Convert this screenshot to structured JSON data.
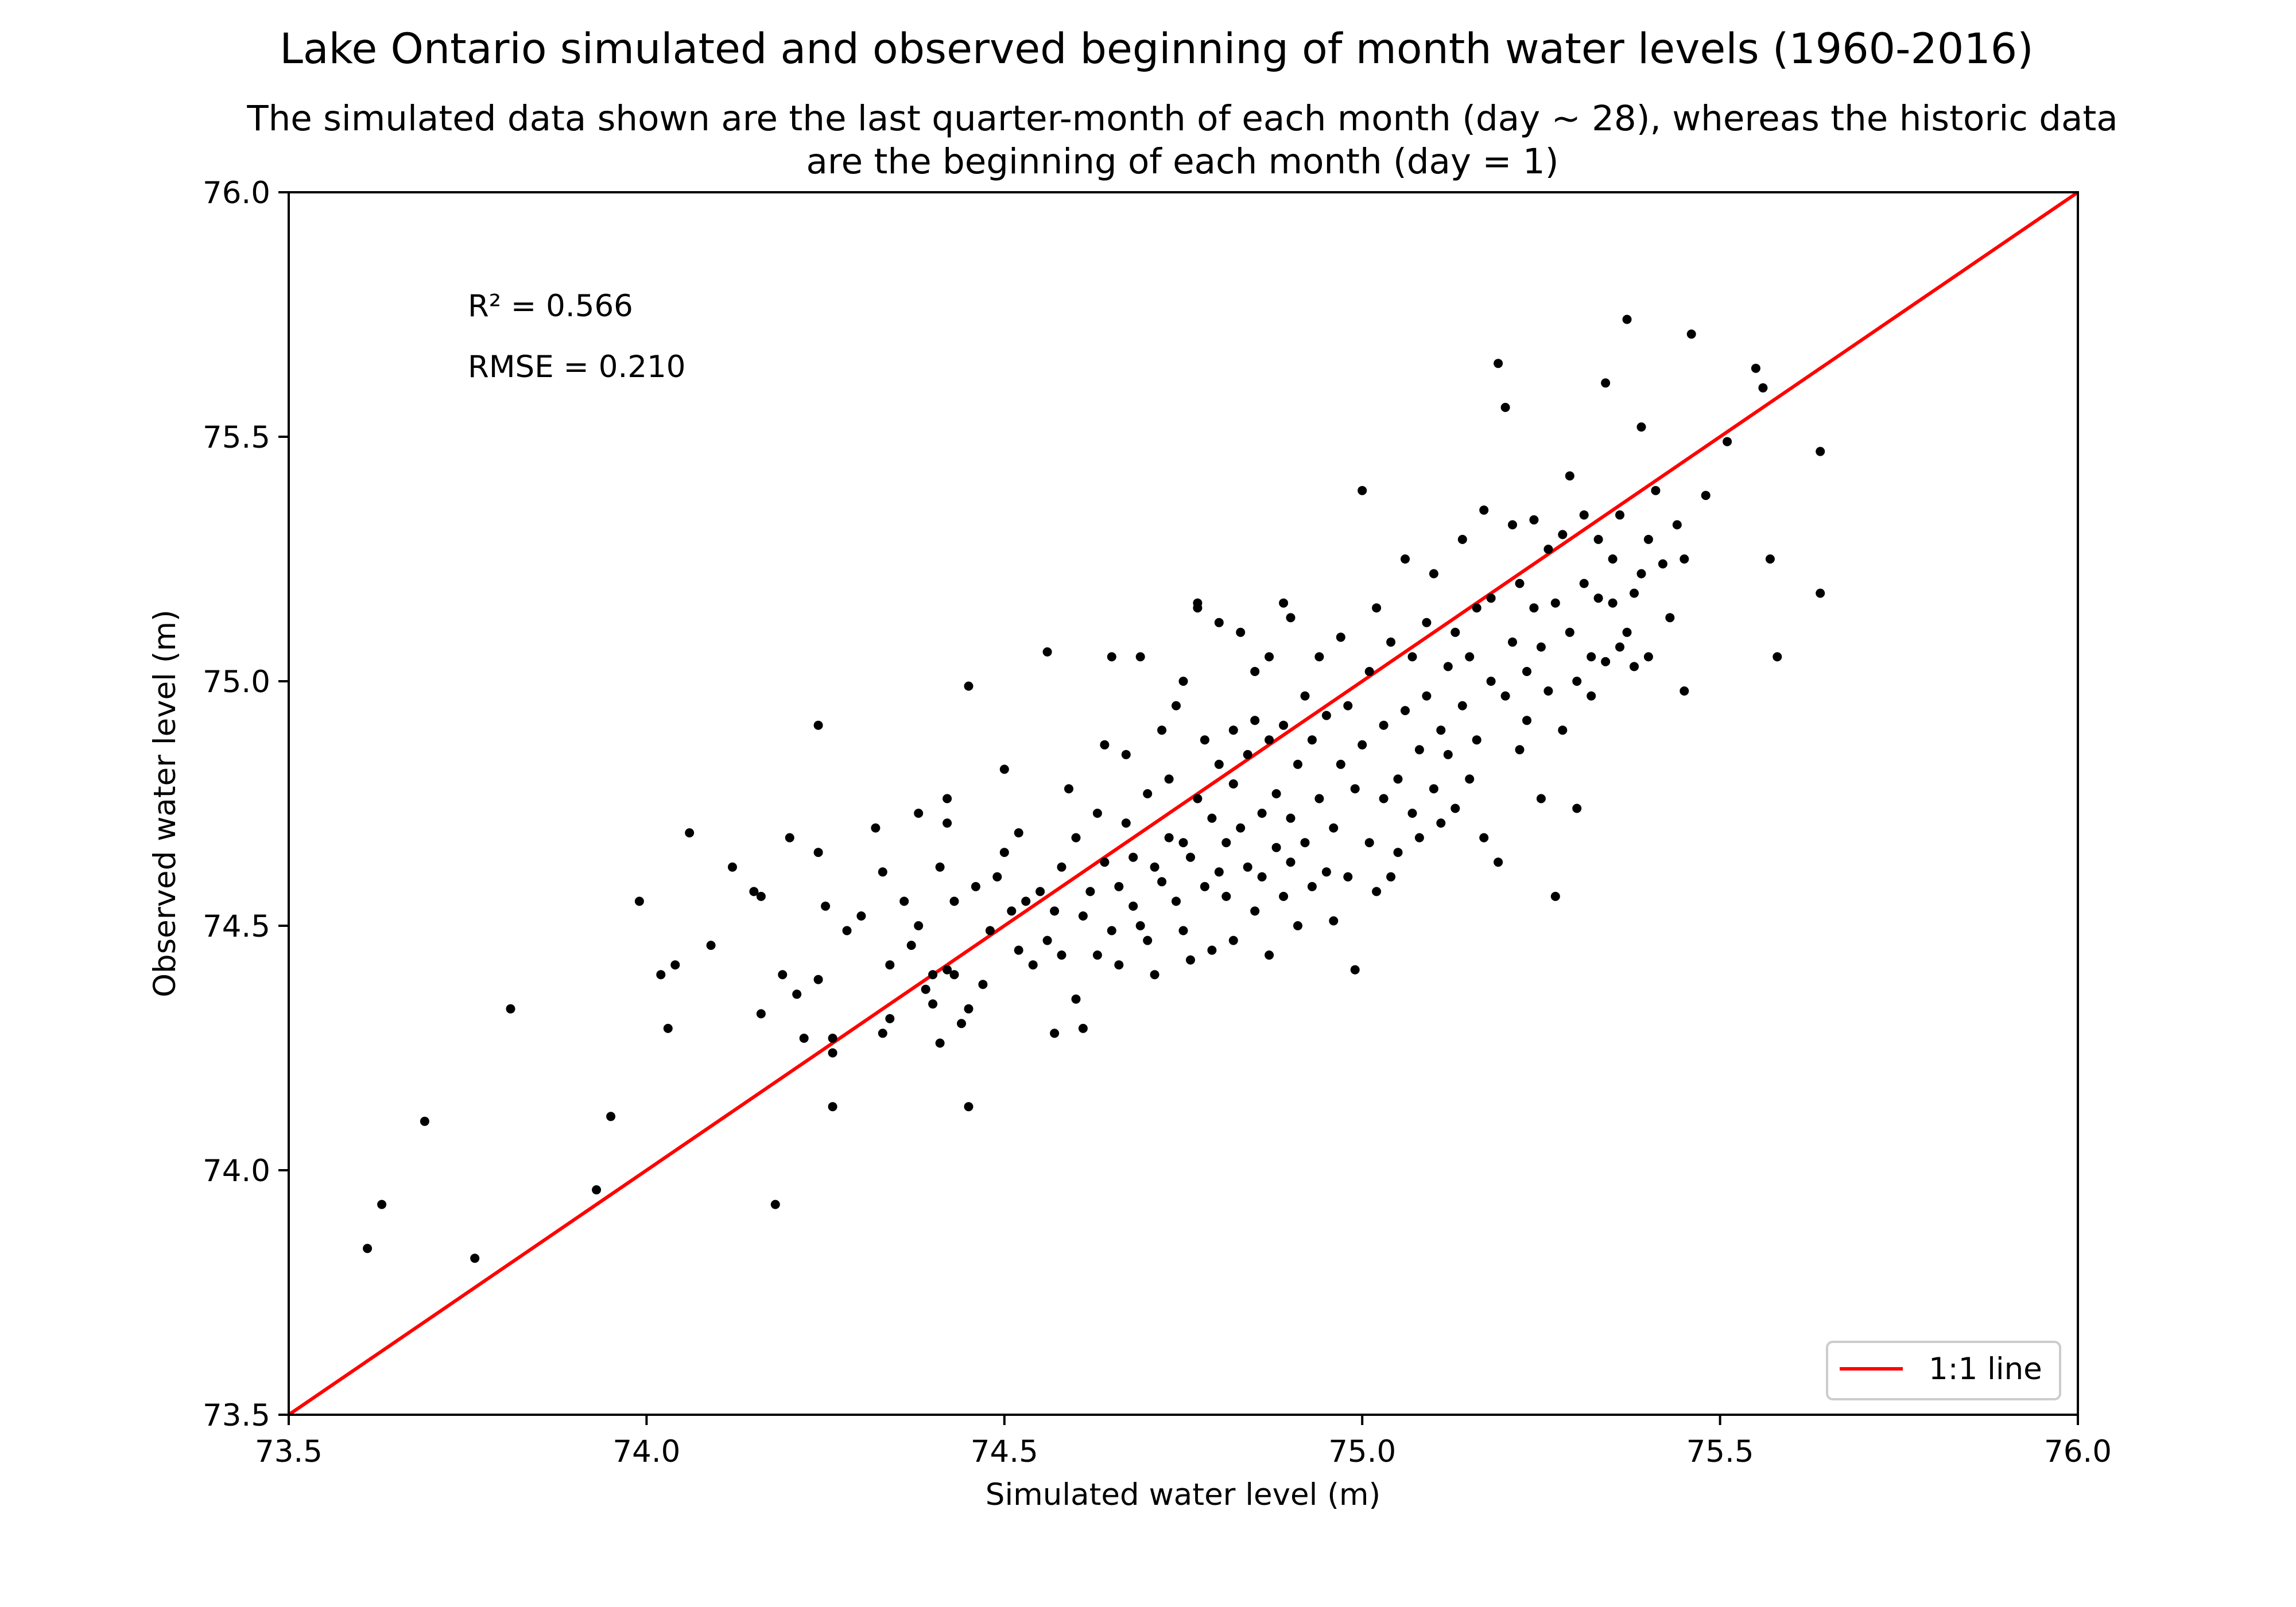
{
  "chart_data": {
    "type": "scatter",
    "title": "Lake Ontario simulated and observed beginning of month water levels (1960-2016)",
    "subtitle": [
      "The simulated data shown are the last quarter-month of each month (day ~ 28), whereas the historic data",
      "are the beginning of each month (day = 1)"
    ],
    "xlabel": "Simulated water level (m)",
    "ylabel": "Observed water level (m)",
    "xlim": [
      73.5,
      76.0
    ],
    "ylim": [
      73.5,
      76.0
    ],
    "xticks": [
      73.5,
      74.0,
      74.5,
      75.0,
      75.5,
      76.0
    ],
    "yticks": [
      73.5,
      74.0,
      74.5,
      75.0,
      75.5,
      76.0
    ],
    "xtick_labels": [
      "73.5",
      "74.0",
      "74.5",
      "75.0",
      "75.5",
      "76.0"
    ],
    "ytick_labels": [
      "73.5",
      "74.0",
      "74.5",
      "75.0",
      "75.5",
      "76.0"
    ],
    "grid": false,
    "annotations": [
      "R² = 0.566",
      "RMSE = 0.210"
    ],
    "legend": {
      "placement": "bottom-right",
      "entries": [
        "1:1 line"
      ]
    },
    "reference_line": {
      "name": "1:1 line",
      "x": [
        73.5,
        76.0
      ],
      "y": [
        73.5,
        76.0
      ],
      "color": "#ff0000"
    },
    "marker_color": "#000000",
    "series": [
      {
        "points": [
          [
            73.61,
            73.84
          ],
          [
            73.63,
            73.93
          ],
          [
            73.69,
            74.1
          ],
          [
            73.76,
            73.82
          ],
          [
            73.81,
            74.33
          ],
          [
            73.93,
            73.96
          ],
          [
            73.95,
            74.11
          ],
          [
            73.99,
            74.55
          ],
          [
            74.02,
            74.4
          ],
          [
            74.03,
            74.29
          ],
          [
            74.04,
            74.42
          ],
          [
            74.06,
            74.69
          ],
          [
            74.09,
            74.46
          ],
          [
            74.12,
            74.62
          ],
          [
            74.15,
            74.57
          ],
          [
            74.16,
            74.56
          ],
          [
            74.16,
            74.32
          ],
          [
            74.18,
            73.93
          ],
          [
            74.19,
            74.4
          ],
          [
            74.2,
            74.68
          ],
          [
            74.21,
            74.36
          ],
          [
            74.22,
            74.27
          ],
          [
            74.24,
            74.91
          ],
          [
            74.24,
            74.65
          ],
          [
            74.24,
            74.39
          ],
          [
            74.25,
            74.54
          ],
          [
            74.26,
            74.24
          ],
          [
            74.26,
            74.13
          ],
          [
            74.26,
            74.27
          ],
          [
            74.28,
            74.49
          ],
          [
            74.3,
            74.52
          ],
          [
            74.32,
            74.7
          ],
          [
            74.33,
            74.28
          ],
          [
            74.33,
            74.61
          ],
          [
            74.34,
            74.31
          ],
          [
            74.34,
            74.42
          ],
          [
            74.36,
            74.55
          ],
          [
            74.37,
            74.46
          ],
          [
            74.38,
            74.73
          ],
          [
            74.38,
            74.5
          ],
          [
            74.39,
            74.37
          ],
          [
            74.4,
            74.4
          ],
          [
            74.4,
            74.34
          ],
          [
            74.41,
            74.62
          ],
          [
            74.41,
            74.26
          ],
          [
            74.42,
            74.41
          ],
          [
            74.42,
            74.76
          ],
          [
            74.42,
            74.71
          ],
          [
            74.43,
            74.55
          ],
          [
            74.43,
            74.4
          ],
          [
            74.44,
            74.3
          ],
          [
            74.45,
            74.99
          ],
          [
            74.45,
            74.13
          ],
          [
            74.45,
            74.33
          ],
          [
            74.46,
            74.58
          ],
          [
            74.47,
            74.38
          ],
          [
            74.48,
            74.49
          ],
          [
            74.49,
            74.6
          ],
          [
            74.5,
            74.65
          ],
          [
            74.5,
            74.82
          ],
          [
            74.51,
            74.53
          ],
          [
            74.52,
            74.45
          ],
          [
            74.52,
            74.69
          ],
          [
            74.53,
            74.55
          ],
          [
            74.54,
            74.42
          ],
          [
            74.55,
            74.57
          ],
          [
            74.56,
            75.06
          ],
          [
            74.56,
            74.47
          ],
          [
            74.57,
            74.53
          ],
          [
            74.57,
            74.28
          ],
          [
            74.58,
            74.62
          ],
          [
            74.58,
            74.44
          ],
          [
            74.59,
            74.78
          ],
          [
            74.6,
            74.68
          ],
          [
            74.6,
            74.35
          ],
          [
            74.61,
            74.29
          ],
          [
            74.61,
            74.52
          ],
          [
            74.62,
            74.57
          ],
          [
            74.63,
            74.44
          ],
          [
            74.63,
            74.73
          ],
          [
            74.64,
            74.63
          ],
          [
            74.64,
            74.87
          ],
          [
            74.65,
            75.05
          ],
          [
            74.65,
            74.49
          ],
          [
            74.66,
            74.58
          ],
          [
            74.66,
            74.42
          ],
          [
            74.67,
            74.71
          ],
          [
            74.67,
            74.85
          ],
          [
            74.68,
            74.54
          ],
          [
            74.68,
            74.64
          ],
          [
            74.69,
            74.5
          ],
          [
            74.69,
            75.05
          ],
          [
            74.7,
            74.77
          ],
          [
            74.7,
            74.47
          ],
          [
            74.71,
            74.62
          ],
          [
            74.71,
            74.4
          ],
          [
            74.72,
            74.59
          ],
          [
            74.72,
            74.9
          ],
          [
            74.73,
            74.68
          ],
          [
            74.73,
            74.8
          ],
          [
            74.74,
            74.55
          ],
          [
            74.74,
            74.95
          ],
          [
            74.75,
            74.49
          ],
          [
            74.75,
            74.67
          ],
          [
            74.75,
            75.0
          ],
          [
            74.76,
            74.64
          ],
          [
            74.76,
            74.43
          ],
          [
            74.77,
            74.76
          ],
          [
            74.77,
            75.16
          ],
          [
            74.77,
            75.15
          ],
          [
            74.78,
            74.88
          ],
          [
            74.78,
            74.58
          ],
          [
            74.79,
            74.72
          ],
          [
            74.79,
            74.45
          ],
          [
            74.8,
            74.61
          ],
          [
            74.8,
            74.83
          ],
          [
            74.8,
            75.12
          ],
          [
            74.81,
            74.67
          ],
          [
            74.81,
            74.56
          ],
          [
            74.82,
            74.9
          ],
          [
            74.82,
            74.79
          ],
          [
            74.82,
            74.47
          ],
          [
            74.83,
            74.7
          ],
          [
            74.83,
            75.1
          ],
          [
            74.84,
            74.62
          ],
          [
            74.84,
            74.85
          ],
          [
            74.85,
            74.53
          ],
          [
            74.85,
            74.92
          ],
          [
            74.85,
            75.02
          ],
          [
            74.86,
            74.73
          ],
          [
            74.86,
            74.6
          ],
          [
            74.87,
            74.44
          ],
          [
            74.87,
            74.88
          ],
          [
            74.87,
            75.05
          ],
          [
            74.88,
            74.66
          ],
          [
            74.88,
            74.77
          ],
          [
            74.89,
            74.56
          ],
          [
            74.89,
            75.16
          ],
          [
            74.89,
            74.91
          ],
          [
            74.9,
            74.63
          ],
          [
            74.9,
            74.72
          ],
          [
            74.9,
            75.13
          ],
          [
            74.91,
            74.83
          ],
          [
            74.91,
            74.5
          ],
          [
            74.92,
            74.67
          ],
          [
            74.92,
            74.97
          ],
          [
            74.93,
            74.58
          ],
          [
            74.93,
            74.88
          ],
          [
            74.94,
            75.05
          ],
          [
            74.94,
            74.76
          ],
          [
            74.95,
            74.61
          ],
          [
            74.95,
            74.93
          ],
          [
            74.96,
            74.7
          ],
          [
            74.96,
            74.51
          ],
          [
            74.97,
            74.83
          ],
          [
            74.97,
            75.09
          ],
          [
            74.98,
            74.6
          ],
          [
            74.98,
            74.95
          ],
          [
            74.99,
            74.78
          ],
          [
            74.99,
            74.41
          ],
          [
            75.0,
            75.39
          ],
          [
            75.0,
            74.87
          ],
          [
            75.01,
            74.67
          ],
          [
            75.01,
            75.02
          ],
          [
            75.02,
            74.57
          ],
          [
            75.02,
            75.15
          ],
          [
            75.03,
            74.76
          ],
          [
            75.03,
            74.91
          ],
          [
            75.04,
            74.6
          ],
          [
            75.04,
            75.08
          ],
          [
            75.05,
            74.8
          ],
          [
            75.05,
            74.65
          ],
          [
            75.06,
            75.25
          ],
          [
            75.06,
            74.94
          ],
          [
            75.07,
            74.73
          ],
          [
            75.07,
            75.05
          ],
          [
            75.08,
            74.86
          ],
          [
            75.08,
            74.68
          ],
          [
            75.09,
            75.12
          ],
          [
            75.09,
            74.97
          ],
          [
            75.1,
            74.78
          ],
          [
            75.1,
            75.22
          ],
          [
            75.11,
            74.9
          ],
          [
            75.11,
            74.71
          ],
          [
            75.12,
            75.03
          ],
          [
            75.12,
            74.85
          ],
          [
            75.13,
            75.1
          ],
          [
            75.13,
            74.74
          ],
          [
            75.14,
            75.29
          ],
          [
            75.14,
            74.95
          ],
          [
            75.15,
            75.05
          ],
          [
            75.15,
            74.8
          ],
          [
            75.16,
            75.15
          ],
          [
            75.16,
            74.88
          ],
          [
            75.17,
            75.35
          ],
          [
            75.17,
            74.68
          ],
          [
            75.18,
            75.0
          ],
          [
            75.18,
            75.17
          ],
          [
            75.19,
            74.63
          ],
          [
            75.19,
            75.65
          ],
          [
            75.2,
            75.56
          ],
          [
            75.2,
            74.97
          ],
          [
            75.21,
            75.08
          ],
          [
            75.21,
            75.32
          ],
          [
            75.22,
            74.86
          ],
          [
            75.22,
            75.2
          ],
          [
            75.23,
            75.02
          ],
          [
            75.23,
            74.92
          ],
          [
            75.24,
            75.15
          ],
          [
            75.24,
            75.33
          ],
          [
            75.25,
            74.76
          ],
          [
            75.25,
            75.07
          ],
          [
            75.26,
            74.98
          ],
          [
            75.26,
            75.27
          ],
          [
            75.27,
            74.56
          ],
          [
            75.27,
            75.16
          ],
          [
            75.28,
            74.9
          ],
          [
            75.28,
            75.3
          ],
          [
            75.29,
            75.1
          ],
          [
            75.29,
            75.42
          ],
          [
            75.3,
            74.74
          ],
          [
            75.3,
            75.0
          ],
          [
            75.31,
            75.2
          ],
          [
            75.31,
            75.34
          ],
          [
            75.32,
            74.97
          ],
          [
            75.32,
            75.05
          ],
          [
            75.33,
            75.29
          ],
          [
            75.33,
            75.17
          ],
          [
            75.34,
            75.61
          ],
          [
            75.34,
            75.04
          ],
          [
            75.35,
            75.25
          ],
          [
            75.35,
            75.16
          ],
          [
            75.36,
            75.07
          ],
          [
            75.36,
            75.34
          ],
          [
            75.37,
            75.74
          ],
          [
            75.37,
            75.1
          ],
          [
            75.38,
            75.18
          ],
          [
            75.38,
            75.03
          ],
          [
            75.39,
            75.52
          ],
          [
            75.39,
            75.22
          ],
          [
            75.4,
            75.29
          ],
          [
            75.4,
            75.05
          ],
          [
            75.41,
            75.39
          ],
          [
            75.42,
            75.24
          ],
          [
            75.43,
            75.13
          ],
          [
            75.44,
            75.32
          ],
          [
            75.45,
            74.98
          ],
          [
            75.45,
            75.25
          ],
          [
            75.46,
            75.71
          ],
          [
            75.48,
            75.38
          ],
          [
            75.51,
            75.49
          ],
          [
            75.55,
            75.64
          ],
          [
            75.56,
            75.6
          ],
          [
            75.57,
            75.25
          ],
          [
            75.58,
            75.05
          ],
          [
            75.64,
            75.47
          ],
          [
            75.64,
            75.18
          ]
        ]
      }
    ]
  }
}
